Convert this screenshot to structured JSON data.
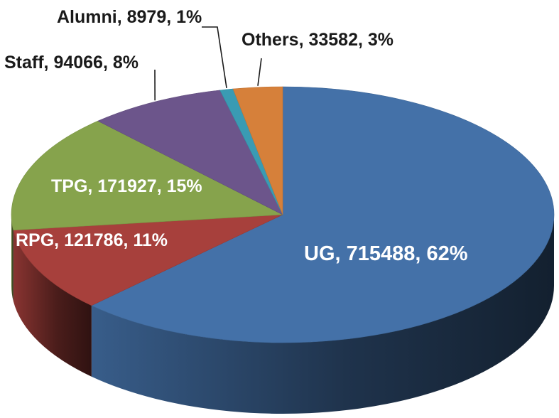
{
  "chart_data": {
    "type": "pie",
    "style": "3d",
    "title": "",
    "slices": [
      {
        "name": "UG",
        "value": 715488,
        "percent": 62,
        "label": "UG,  715488,  62%",
        "color": "#4471A8",
        "label_placement": "inside"
      },
      {
        "name": "RPG",
        "value": 121786,
        "percent": 11,
        "label": "RPG, 121786, 11%",
        "color": "#A7403C",
        "label_placement": "inside"
      },
      {
        "name": "TPG",
        "value": 171927,
        "percent": 15,
        "label": "TPG, 171927, 15%",
        "color": "#86A34C",
        "label_placement": "inside"
      },
      {
        "name": "Staff",
        "value": 94066,
        "percent": 8,
        "label": "Staff, 94066, 8%",
        "color": "#6C558B",
        "label_placement": "outside"
      },
      {
        "name": "Alumni",
        "value": 8979,
        "percent": 1,
        "label": "Alumni, 8979, 1%",
        "color": "#3A9BB3",
        "label_placement": "outside"
      },
      {
        "name": "Others",
        "value": 33582,
        "percent": 3,
        "label": "Others, 33582, 3%",
        "color": "#D6803A",
        "label_placement": "outside"
      }
    ]
  }
}
